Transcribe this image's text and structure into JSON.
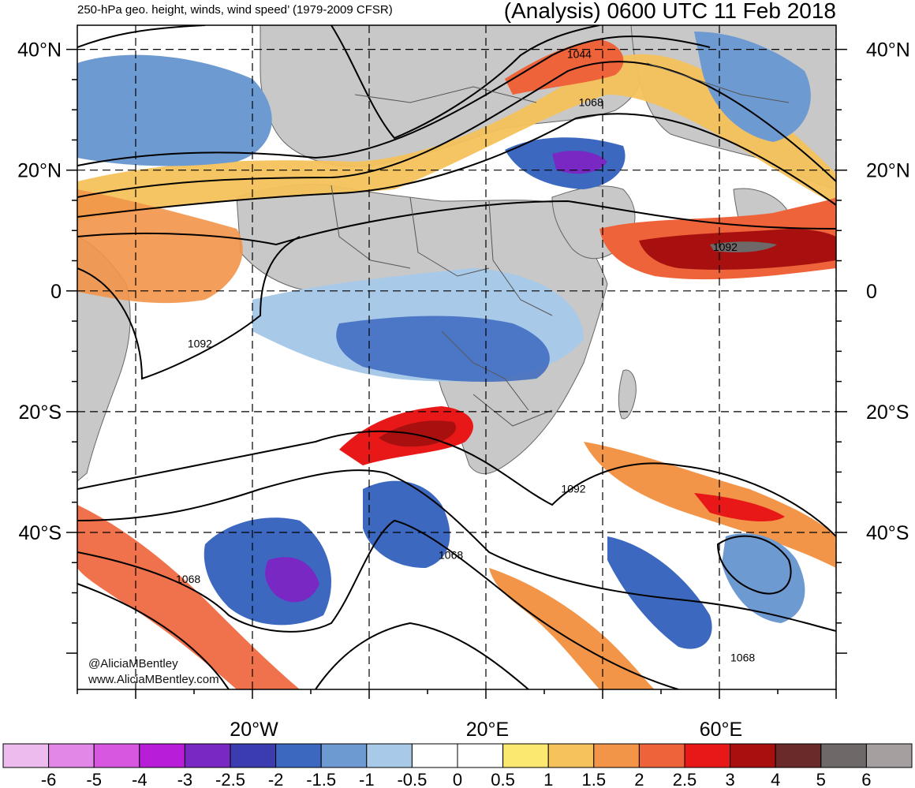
{
  "header": {
    "left_title": "250-hPa geo. height, winds, wind speed’ (1979-2009 CFSR)",
    "right_title": "(Analysis) 0600 UTC 11 Feb 2018"
  },
  "axes": {
    "lat_labels": [
      "40°N",
      "20°N",
      "0",
      "20°S",
      "40°S"
    ],
    "lat_values": [
      40,
      20,
      0,
      -20,
      -40
    ],
    "lon_labels": [
      "20°W",
      "20°E",
      "60°E"
    ],
    "lon_values": [
      -20,
      20,
      60
    ],
    "lat_range": [
      -66,
      44
    ],
    "lon_range": [
      -50,
      80
    ]
  },
  "contour_labels": [
    {
      "text": "1044",
      "lon": 36,
      "lat": 39
    },
    {
      "text": "1068",
      "lon": 38,
      "lat": 31
    },
    {
      "text": "1092",
      "lon": 61,
      "lat": 7
    },
    {
      "text": "1092",
      "lon": -29,
      "lat": -9
    },
    {
      "text": "1092",
      "lon": 35,
      "lat": -33
    },
    {
      "text": "1068",
      "lon": 14,
      "lat": -44
    },
    {
      "text": "1068",
      "lon": -31,
      "lat": -48
    },
    {
      "text": "1068",
      "lon": 64,
      "lat": -61
    }
  ],
  "credits": {
    "line1": "@AliciaMBentley",
    "line2": "www.AliciaMBentley.com"
  },
  "colorbar": {
    "labels": [
      "-6",
      "-5",
      "-4",
      "-3",
      "-2.5",
      "-2",
      "-1.5",
      "-1",
      "-0.5",
      "0",
      "0.5",
      "1",
      "1.5",
      "2",
      "2.5",
      "3",
      "4",
      "5",
      "6"
    ],
    "colors": [
      "#eebbee",
      "#e287e8",
      "#d757e0",
      "#b81ed8",
      "#7a28c4",
      "#3a3cb0",
      "#3c68c0",
      "#6e9ad2",
      "#a8cae8",
      "#ffffff",
      "#ffffff",
      "#fbe870",
      "#f6c25b",
      "#f29549",
      "#ee633a",
      "#e81818",
      "#a81010",
      "#6a2a2a",
      "#6e6868",
      "#a59f9f"
    ]
  },
  "fields": {
    "land_color": "#c8c8c8",
    "contour_color": "#000000",
    "boundary_color": "#555555"
  }
}
